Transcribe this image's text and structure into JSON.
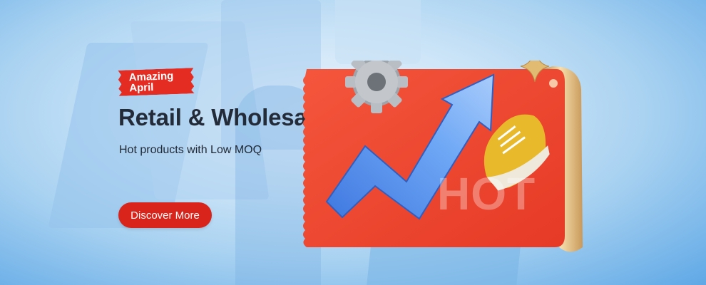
{
  "banner": {
    "tag_line1": "Amazing",
    "tag_line2": "April",
    "title": "Retail & Wholesale",
    "subtitle": "Hot products with Low MOQ",
    "cta_label": "Discover More",
    "ticket_text": "HOT"
  },
  "colors": {
    "accent_red": "#d9241c",
    "ticket_red": "#f2452e",
    "gold": "#e2bb73",
    "arrow_blue": "#4a86e8",
    "title_dark": "#232a38"
  },
  "icons": [
    "gear-icon",
    "growth-arrow-icon",
    "sneaker-icon",
    "sparkle-icon"
  ]
}
